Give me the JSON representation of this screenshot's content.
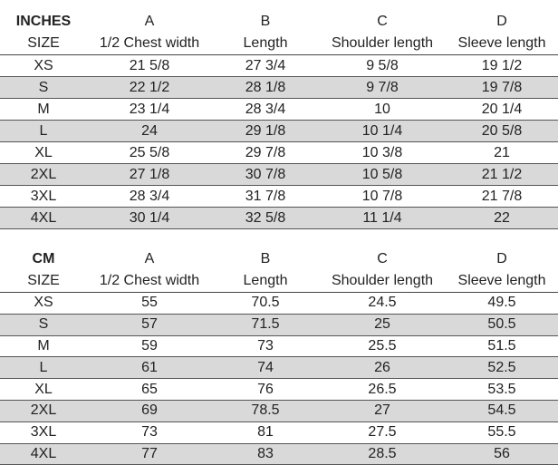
{
  "tables": [
    {
      "unit": "INCHES",
      "letters": [
        "A",
        "B",
        "C",
        "D"
      ],
      "size_label": "SIZE",
      "columns": [
        "1/2 Chest width",
        "Length",
        "Shoulder length",
        "Sleeve length"
      ],
      "rows": [
        [
          "XS",
          "21 5/8",
          "27 3/4",
          "9 5/8",
          "19 1/2"
        ],
        [
          "S",
          "22 1/2",
          "28 1/8",
          "9 7/8",
          "19 7/8"
        ],
        [
          "M",
          "23 1/4",
          "28 3/4",
          "10",
          "20 1/4"
        ],
        [
          "L",
          "24",
          "29 1/8",
          "10 1/4",
          "20 5/8"
        ],
        [
          "XL",
          "25 5/8",
          "29 7/8",
          "10 3/8",
          "21"
        ],
        [
          "2XL",
          "27 1/8",
          "30 7/8",
          "10 5/8",
          "21 1/2"
        ],
        [
          "3XL",
          "28 3/4",
          "31 7/8",
          "10 7/8",
          "21 7/8"
        ],
        [
          "4XL",
          "30 1/4",
          "32 5/8",
          "11 1/4",
          "22"
        ]
      ]
    },
    {
      "unit": "CM",
      "letters": [
        "A",
        "B",
        "C",
        "D"
      ],
      "size_label": "SIZE",
      "columns": [
        "1/2 Chest width",
        "Length",
        "Shoulder length",
        "Sleeve length"
      ],
      "rows": [
        [
          "XS",
          "55",
          "70.5",
          "24.5",
          "49.5"
        ],
        [
          "S",
          "57",
          "71.5",
          "25",
          "50.5"
        ],
        [
          "M",
          "59",
          "73",
          "25.5",
          "51.5"
        ],
        [
          "L",
          "61",
          "74",
          "26",
          "52.5"
        ],
        [
          "XL",
          "65",
          "76",
          "26.5",
          "53.5"
        ],
        [
          "2XL",
          "69",
          "78.5",
          "27",
          "54.5"
        ],
        [
          "3XL",
          "73",
          "81",
          "27.5",
          "55.5"
        ],
        [
          "4XL",
          "77",
          "83",
          "28.5",
          "56"
        ]
      ]
    }
  ],
  "colors": {
    "alt_row": "#d9d9d9",
    "border": "#555555"
  }
}
